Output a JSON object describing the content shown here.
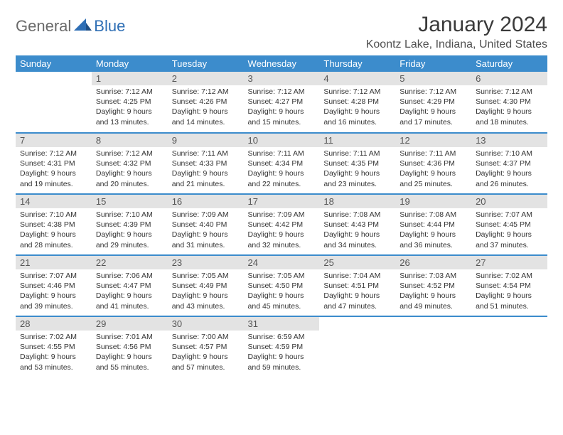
{
  "logo": {
    "general": "General",
    "blue": "Blue"
  },
  "title": "January 2024",
  "location": "Koontz Lake, Indiana, United States",
  "colors": {
    "header_bg": "#3c8ccc",
    "header_text": "#ffffff",
    "daynum_bg": "#e3e3e3",
    "row_border": "#3c8ccc",
    "logo_gray": "#6a6a6a",
    "logo_blue": "#2f6fb5"
  },
  "day_headers": [
    "Sunday",
    "Monday",
    "Tuesday",
    "Wednesday",
    "Thursday",
    "Friday",
    "Saturday"
  ],
  "weeks": [
    [
      {
        "n": "",
        "l1": "",
        "l2": "",
        "l3": "",
        "l4": ""
      },
      {
        "n": "1",
        "l1": "Sunrise: 7:12 AM",
        "l2": "Sunset: 4:25 PM",
        "l3": "Daylight: 9 hours",
        "l4": "and 13 minutes."
      },
      {
        "n": "2",
        "l1": "Sunrise: 7:12 AM",
        "l2": "Sunset: 4:26 PM",
        "l3": "Daylight: 9 hours",
        "l4": "and 14 minutes."
      },
      {
        "n": "3",
        "l1": "Sunrise: 7:12 AM",
        "l2": "Sunset: 4:27 PM",
        "l3": "Daylight: 9 hours",
        "l4": "and 15 minutes."
      },
      {
        "n": "4",
        "l1": "Sunrise: 7:12 AM",
        "l2": "Sunset: 4:28 PM",
        "l3": "Daylight: 9 hours",
        "l4": "and 16 minutes."
      },
      {
        "n": "5",
        "l1": "Sunrise: 7:12 AM",
        "l2": "Sunset: 4:29 PM",
        "l3": "Daylight: 9 hours",
        "l4": "and 17 minutes."
      },
      {
        "n": "6",
        "l1": "Sunrise: 7:12 AM",
        "l2": "Sunset: 4:30 PM",
        "l3": "Daylight: 9 hours",
        "l4": "and 18 minutes."
      }
    ],
    [
      {
        "n": "7",
        "l1": "Sunrise: 7:12 AM",
        "l2": "Sunset: 4:31 PM",
        "l3": "Daylight: 9 hours",
        "l4": "and 19 minutes."
      },
      {
        "n": "8",
        "l1": "Sunrise: 7:12 AM",
        "l2": "Sunset: 4:32 PM",
        "l3": "Daylight: 9 hours",
        "l4": "and 20 minutes."
      },
      {
        "n": "9",
        "l1": "Sunrise: 7:11 AM",
        "l2": "Sunset: 4:33 PM",
        "l3": "Daylight: 9 hours",
        "l4": "and 21 minutes."
      },
      {
        "n": "10",
        "l1": "Sunrise: 7:11 AM",
        "l2": "Sunset: 4:34 PM",
        "l3": "Daylight: 9 hours",
        "l4": "and 22 minutes."
      },
      {
        "n": "11",
        "l1": "Sunrise: 7:11 AM",
        "l2": "Sunset: 4:35 PM",
        "l3": "Daylight: 9 hours",
        "l4": "and 23 minutes."
      },
      {
        "n": "12",
        "l1": "Sunrise: 7:11 AM",
        "l2": "Sunset: 4:36 PM",
        "l3": "Daylight: 9 hours",
        "l4": "and 25 minutes."
      },
      {
        "n": "13",
        "l1": "Sunrise: 7:10 AM",
        "l2": "Sunset: 4:37 PM",
        "l3": "Daylight: 9 hours",
        "l4": "and 26 minutes."
      }
    ],
    [
      {
        "n": "14",
        "l1": "Sunrise: 7:10 AM",
        "l2": "Sunset: 4:38 PM",
        "l3": "Daylight: 9 hours",
        "l4": "and 28 minutes."
      },
      {
        "n": "15",
        "l1": "Sunrise: 7:10 AM",
        "l2": "Sunset: 4:39 PM",
        "l3": "Daylight: 9 hours",
        "l4": "and 29 minutes."
      },
      {
        "n": "16",
        "l1": "Sunrise: 7:09 AM",
        "l2": "Sunset: 4:40 PM",
        "l3": "Daylight: 9 hours",
        "l4": "and 31 minutes."
      },
      {
        "n": "17",
        "l1": "Sunrise: 7:09 AM",
        "l2": "Sunset: 4:42 PM",
        "l3": "Daylight: 9 hours",
        "l4": "and 32 minutes."
      },
      {
        "n": "18",
        "l1": "Sunrise: 7:08 AM",
        "l2": "Sunset: 4:43 PM",
        "l3": "Daylight: 9 hours",
        "l4": "and 34 minutes."
      },
      {
        "n": "19",
        "l1": "Sunrise: 7:08 AM",
        "l2": "Sunset: 4:44 PM",
        "l3": "Daylight: 9 hours",
        "l4": "and 36 minutes."
      },
      {
        "n": "20",
        "l1": "Sunrise: 7:07 AM",
        "l2": "Sunset: 4:45 PM",
        "l3": "Daylight: 9 hours",
        "l4": "and 37 minutes."
      }
    ],
    [
      {
        "n": "21",
        "l1": "Sunrise: 7:07 AM",
        "l2": "Sunset: 4:46 PM",
        "l3": "Daylight: 9 hours",
        "l4": "and 39 minutes."
      },
      {
        "n": "22",
        "l1": "Sunrise: 7:06 AM",
        "l2": "Sunset: 4:47 PM",
        "l3": "Daylight: 9 hours",
        "l4": "and 41 minutes."
      },
      {
        "n": "23",
        "l1": "Sunrise: 7:05 AM",
        "l2": "Sunset: 4:49 PM",
        "l3": "Daylight: 9 hours",
        "l4": "and 43 minutes."
      },
      {
        "n": "24",
        "l1": "Sunrise: 7:05 AM",
        "l2": "Sunset: 4:50 PM",
        "l3": "Daylight: 9 hours",
        "l4": "and 45 minutes."
      },
      {
        "n": "25",
        "l1": "Sunrise: 7:04 AM",
        "l2": "Sunset: 4:51 PM",
        "l3": "Daylight: 9 hours",
        "l4": "and 47 minutes."
      },
      {
        "n": "26",
        "l1": "Sunrise: 7:03 AM",
        "l2": "Sunset: 4:52 PM",
        "l3": "Daylight: 9 hours",
        "l4": "and 49 minutes."
      },
      {
        "n": "27",
        "l1": "Sunrise: 7:02 AM",
        "l2": "Sunset: 4:54 PM",
        "l3": "Daylight: 9 hours",
        "l4": "and 51 minutes."
      }
    ],
    [
      {
        "n": "28",
        "l1": "Sunrise: 7:02 AM",
        "l2": "Sunset: 4:55 PM",
        "l3": "Daylight: 9 hours",
        "l4": "and 53 minutes."
      },
      {
        "n": "29",
        "l1": "Sunrise: 7:01 AM",
        "l2": "Sunset: 4:56 PM",
        "l3": "Daylight: 9 hours",
        "l4": "and 55 minutes."
      },
      {
        "n": "30",
        "l1": "Sunrise: 7:00 AM",
        "l2": "Sunset: 4:57 PM",
        "l3": "Daylight: 9 hours",
        "l4": "and 57 minutes."
      },
      {
        "n": "31",
        "l1": "Sunrise: 6:59 AM",
        "l2": "Sunset: 4:59 PM",
        "l3": "Daylight: 9 hours",
        "l4": "and 59 minutes."
      },
      {
        "n": "",
        "l1": "",
        "l2": "",
        "l3": "",
        "l4": ""
      },
      {
        "n": "",
        "l1": "",
        "l2": "",
        "l3": "",
        "l4": ""
      },
      {
        "n": "",
        "l1": "",
        "l2": "",
        "l3": "",
        "l4": ""
      }
    ]
  ]
}
